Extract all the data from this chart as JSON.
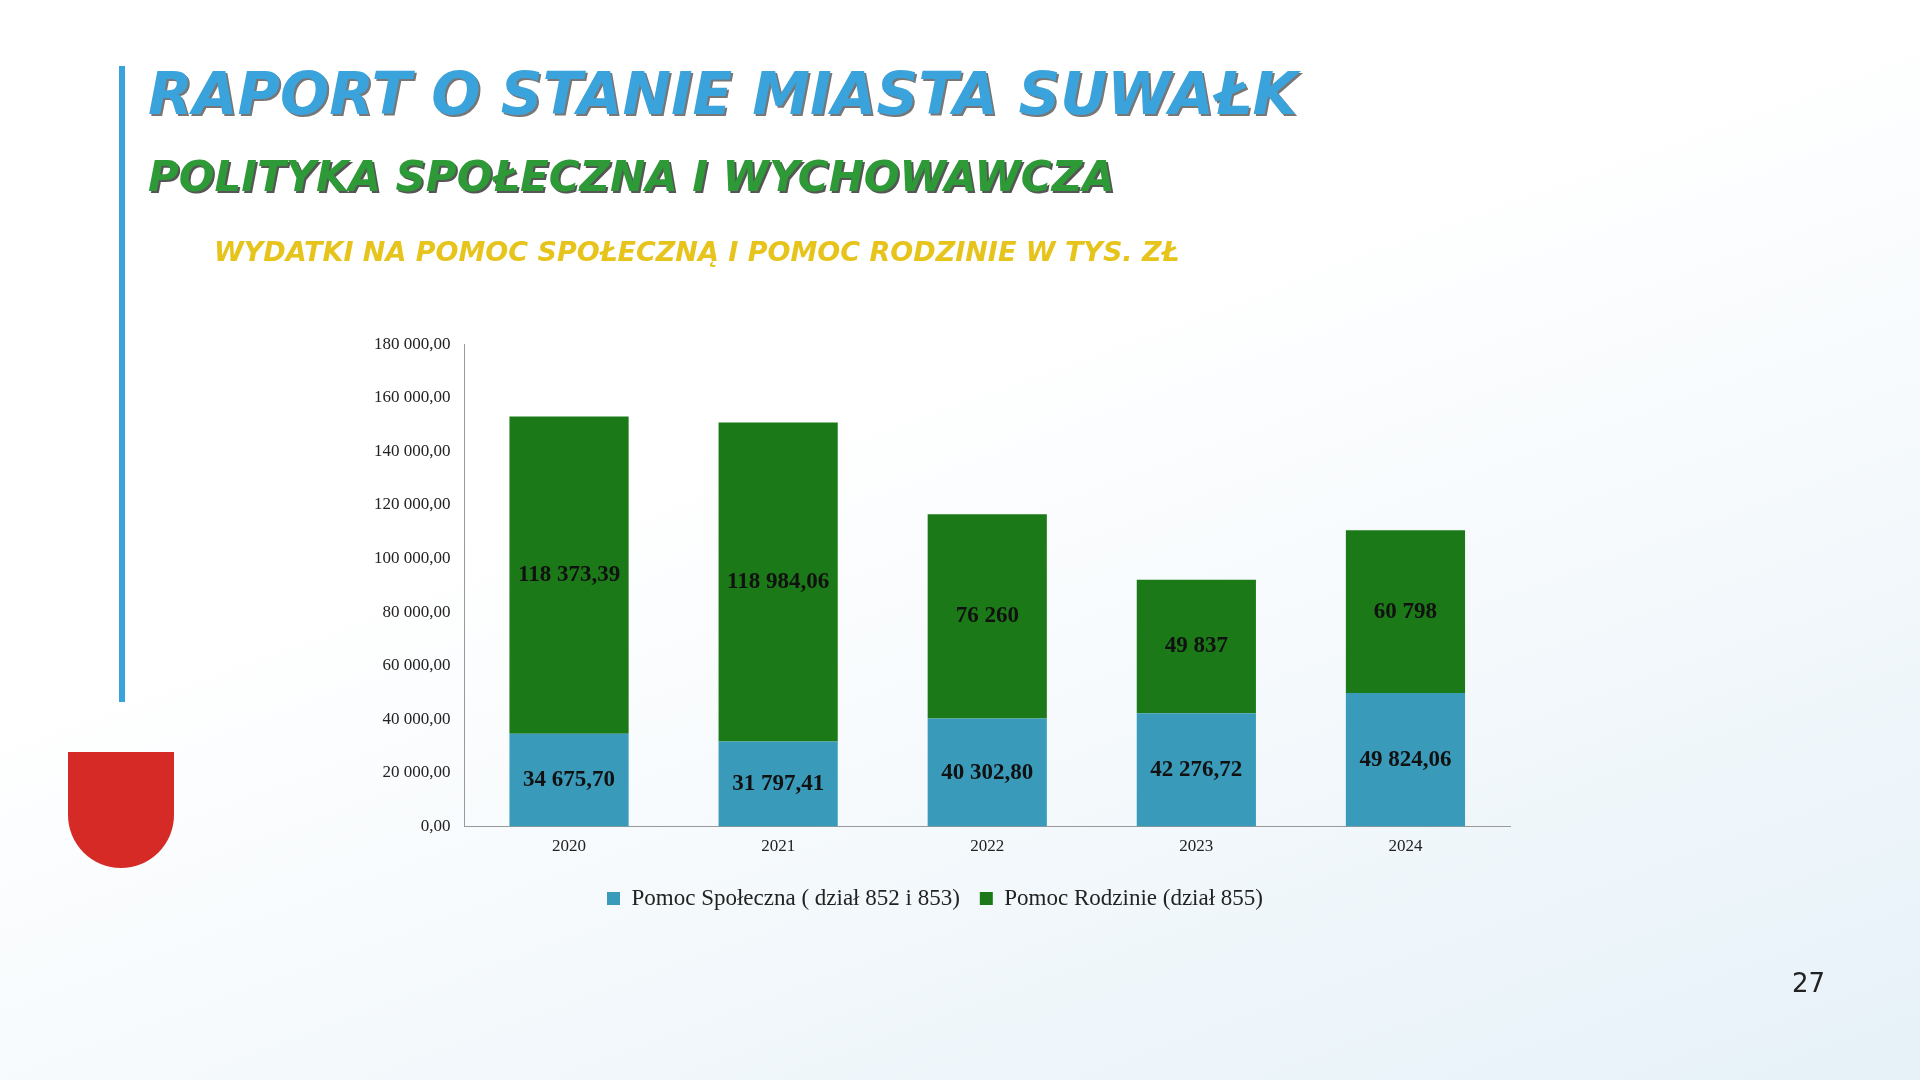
{
  "chart_data": {
    "type": "bar",
    "title": "RAPORT O STANIE MIASTA SUWAŁK",
    "subtitle": "POLITYKA SPOŁECZNA I WYCHOWAWCZA",
    "annotations": [
      "WYDATKI NA POMOC SPOŁECZNĄ I POMOC RODZINIE W TYS. ZŁ",
      "27"
    ],
    "categories": [
      "2020",
      "2021",
      "2022",
      "2023",
      "2024"
    ],
    "stacked": true,
    "series": [
      {
        "name": "Pomoc Społeczna ( dział 852 i 853)",
        "color": "#3a9aba",
        "values": [
          34675.7,
          31797.41,
          40302.8,
          42276.72,
          49824.06
        ],
        "value_labels": [
          "34 675,70",
          "31 797,41",
          "40 302,80",
          "42 276,72",
          "49 824,06"
        ]
      },
      {
        "name": "Pomoc Rodzinie (dział 855)",
        "color": "#1b7a17",
        "values": [
          118373.39,
          118984.06,
          76260,
          49837,
          60798
        ],
        "value_labels": [
          "118 373,39",
          "118 984,06",
          "76 260",
          "49 837",
          "60 798"
        ]
      }
    ],
    "ylim": [
      0,
      180000
    ],
    "yticks": [
      {
        "value": 0,
        "label": "0,00"
      },
      {
        "value": 20000,
        "label": "20 000,00"
      },
      {
        "value": 40000,
        "label": "40 000,00"
      },
      {
        "value": 60000,
        "label": "60 000,00"
      },
      {
        "value": 80000,
        "label": "80 000,00"
      },
      {
        "value": 100000,
        "label": "100 000,00"
      },
      {
        "value": 120000,
        "label": "120 000,00"
      },
      {
        "value": 140000,
        "label": "140 000,00"
      },
      {
        "value": 160000,
        "label": "160 000,00"
      },
      {
        "value": 180000,
        "label": "180 000,00"
      }
    ],
    "grid": false,
    "legend": "bottom"
  }
}
